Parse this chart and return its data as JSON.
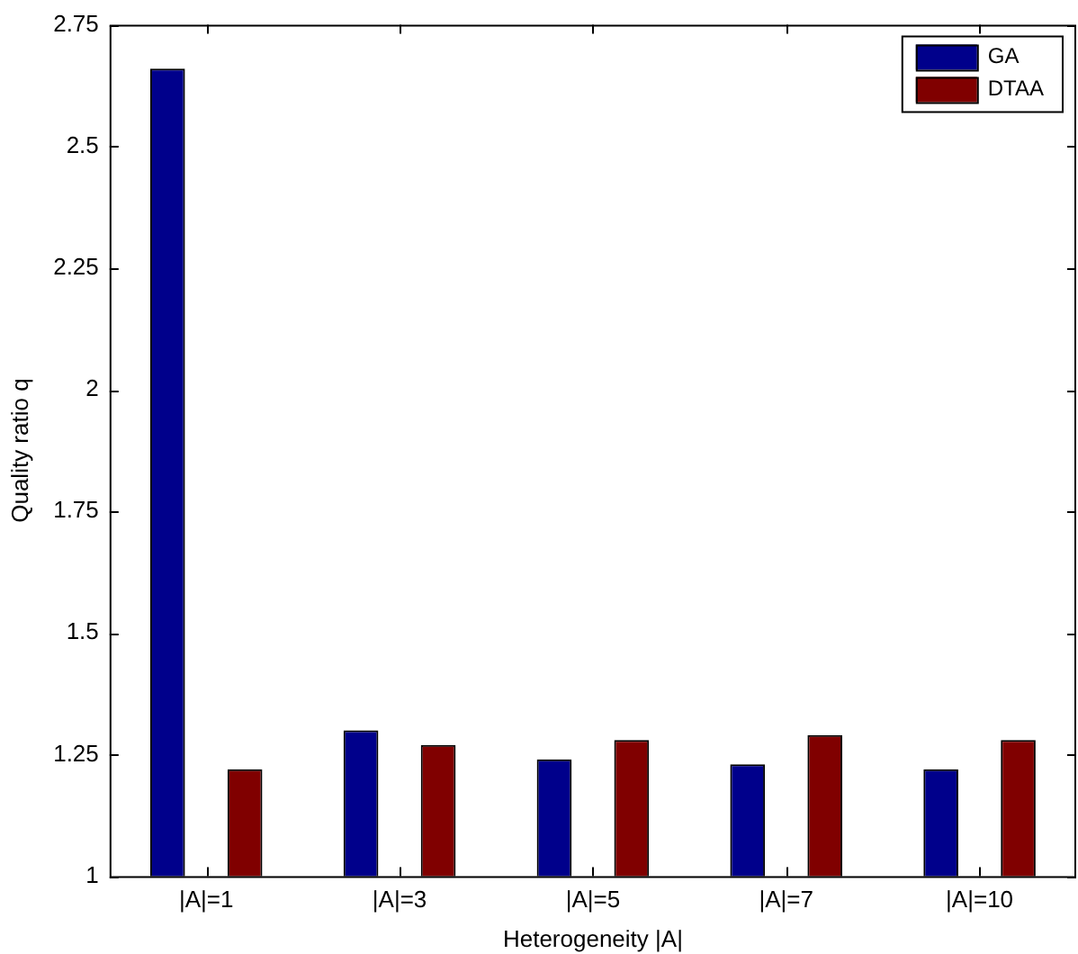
{
  "chart_data": {
    "type": "bar",
    "xlabel": "Heterogeneity |A|",
    "ylabel": "Quality ratio q",
    "categories": [
      "|A|=1",
      "|A|=3",
      "|A|=5",
      "|A|=7",
      "|A|=10"
    ],
    "series": [
      {
        "name": "GA",
        "color": "#00008b",
        "values": [
          2.66,
          1.3,
          1.24,
          1.23,
          1.22
        ]
      },
      {
        "name": "DTAA",
        "color": "#800000",
        "values": [
          1.22,
          1.27,
          1.28,
          1.29,
          1.28
        ]
      }
    ],
    "ylim": [
      1,
      2.75
    ],
    "yticks": [
      1,
      1.25,
      1.5,
      1.75,
      2,
      2.25,
      2.5,
      2.75
    ],
    "grid": false,
    "legend": "top right"
  }
}
